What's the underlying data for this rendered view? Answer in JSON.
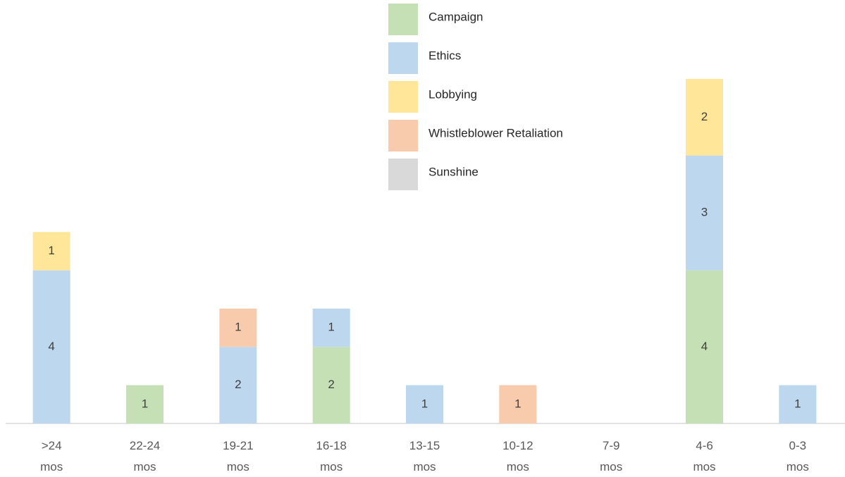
{
  "chart_data": {
    "type": "stacked_bar",
    "categories": [
      ">24 mos",
      "22-24 mos",
      "19-21 mos",
      "16-18 mos",
      "13-15 mos",
      "10-12 mos",
      "7-9 mos",
      "4-6 mos",
      "0-3 mos"
    ],
    "series": [
      {
        "name": "Campaign",
        "color": "#c5e0b4",
        "values": [
          0,
          1,
          0,
          2,
          0,
          0,
          0,
          4,
          0
        ]
      },
      {
        "name": "Ethics",
        "color": "#bdd7ee",
        "values": [
          4,
          0,
          2,
          1,
          1,
          0,
          0,
          3,
          1
        ]
      },
      {
        "name": "Lobbying",
        "color": "#ffe699",
        "values": [
          1,
          0,
          0,
          0,
          0,
          0,
          0,
          2,
          0
        ]
      },
      {
        "name": "Whistleblower Retaliation",
        "color": "#f8cbad",
        "values": [
          0,
          0,
          1,
          0,
          0,
          1,
          0,
          0,
          0
        ]
      },
      {
        "name": "Sunshine",
        "color": "#d9d9d9",
        "values": [
          0,
          0,
          0,
          0,
          0,
          0,
          0,
          0,
          0
        ]
      }
    ],
    "ylim": [
      0,
      9
    ]
  }
}
